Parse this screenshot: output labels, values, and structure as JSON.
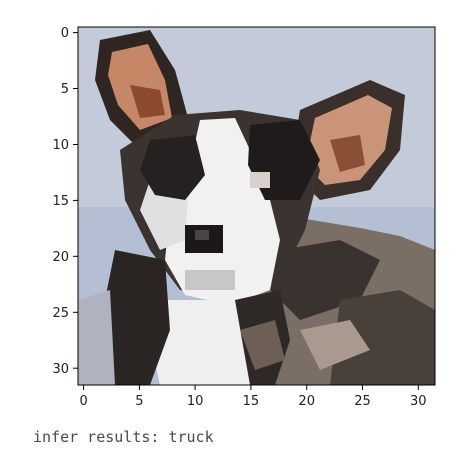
{
  "caption": {
    "label": "infer results: truck"
  },
  "image": {
    "subject": "pixelated image of a black-and-white dog with large ears",
    "grid_size": [
      32,
      32
    ]
  },
  "axes": {
    "x_ticks": [
      "0",
      "5",
      "10",
      "15",
      "20",
      "25",
      "30"
    ],
    "y_ticks": [
      "0",
      "5",
      "10",
      "15",
      "20",
      "25",
      "30"
    ]
  },
  "colors": {
    "background_sky": "#b4bfd3",
    "ear_inner": "#c58766",
    "fur_dark": "#2c2624",
    "fur_white": "#f1f1f1",
    "fur_brown_gray": "#7b6e65"
  }
}
